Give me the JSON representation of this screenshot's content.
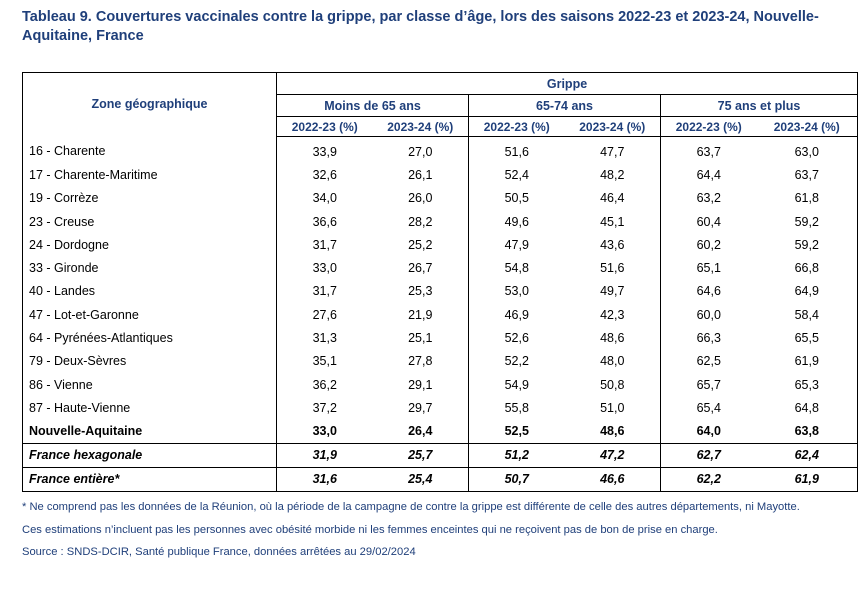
{
  "title": "Tableau 9. Couvertures vaccinales contre la grippe, par classe d’âge, lors des saisons 2022-23 et 2023-24, Nouvelle-Aquitaine, France",
  "table": {
    "zone_header": "Zone géographique",
    "super_header": "Grippe",
    "groups": [
      "Moins de 65 ans",
      "65-74 ans",
      "75 ans et plus"
    ],
    "year_headers": [
      "2022-23 (%)",
      "2023-24 (%)",
      "2022-23 (%)",
      "2023-24 (%)",
      "2022-23 (%)",
      "2023-24 (%)"
    ],
    "rows": [
      {
        "zone": "16 - Charente",
        "values": [
          "33,9",
          "27,0",
          "51,6",
          "47,7",
          "63,7",
          "63,0"
        ]
      },
      {
        "zone": "17 - Charente-Maritime",
        "values": [
          "32,6",
          "26,1",
          "52,4",
          "48,2",
          "64,4",
          "63,7"
        ]
      },
      {
        "zone": "19 - Corrèze",
        "values": [
          "34,0",
          "26,0",
          "50,5",
          "46,4",
          "63,2",
          "61,8"
        ]
      },
      {
        "zone": "23 - Creuse",
        "values": [
          "36,6",
          "28,2",
          "49,6",
          "45,1",
          "60,4",
          "59,2"
        ]
      },
      {
        "zone": "24 - Dordogne",
        "values": [
          "31,7",
          "25,2",
          "47,9",
          "43,6",
          "60,2",
          "59,2"
        ]
      },
      {
        "zone": "33 - Gironde",
        "values": [
          "33,0",
          "26,7",
          "54,8",
          "51,6",
          "65,1",
          "66,8"
        ]
      },
      {
        "zone": "40 - Landes",
        "values": [
          "31,7",
          "25,3",
          "53,0",
          "49,7",
          "64,6",
          "64,9"
        ]
      },
      {
        "zone": "47 - Lot-et-Garonne",
        "values": [
          "27,6",
          "21,9",
          "46,9",
          "42,3",
          "60,0",
          "58,4"
        ]
      },
      {
        "zone": "64 - Pyrénées-Atlantiques",
        "values": [
          "31,3",
          "25,1",
          "52,6",
          "48,6",
          "66,3",
          "65,5"
        ]
      },
      {
        "zone": "79 - Deux-Sèvres",
        "values": [
          "35,1",
          "27,8",
          "52,2",
          "48,0",
          "62,5",
          "61,9"
        ]
      },
      {
        "zone": "86 - Vienne",
        "values": [
          "36,2",
          "29,1",
          "54,9",
          "50,8",
          "65,7",
          "65,3"
        ]
      },
      {
        "zone": "87 - Haute-Vienne",
        "values": [
          "37,2",
          "29,7",
          "55,8",
          "51,0",
          "65,4",
          "64,8"
        ]
      }
    ],
    "region_row": {
      "zone": "Nouvelle-Aquitaine",
      "values": [
        "33,0",
        "26,4",
        "52,5",
        "48,6",
        "64,0",
        "63,8"
      ]
    },
    "france_hex_row": {
      "zone": "France hexagonale",
      "values": [
        "31,9",
        "25,7",
        "51,2",
        "47,2",
        "62,7",
        "62,4"
      ]
    },
    "france_total_row": {
      "zone": "France entière*",
      "values": [
        "31,6",
        "25,4",
        "50,7",
        "46,6",
        "62,2",
        "61,9"
      ]
    }
  },
  "notes": {
    "footnote": "* Ne comprend pas les données de la Réunion, où la période de la campagne de contre la grippe est différente de celle des autres départements, ni Mayotte.",
    "estimation": "Ces estimations n’incluent pas les personnes avec obésité morbide ni les femmes enceintes qui ne reçoivent pas de bon de prise en charge.",
    "source": "Source : SNDS-DCIR, Santé publique France, données arrêtées au 29/02/2024"
  }
}
